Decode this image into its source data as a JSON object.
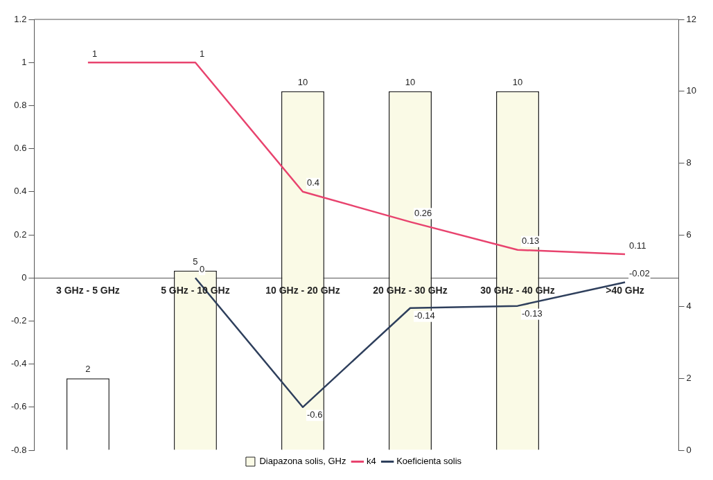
{
  "chart_data": {
    "type": "bar",
    "categories": [
      "3 GHz - 5 GHz",
      "5 GHz - 10 GHz",
      "10 GHz - 20 GHz",
      "20 GHz - 30 GHz",
      "30 GHz - 40 GHz",
      ">40 GHz"
    ],
    "series": [
      {
        "name": "Diapazona solis, GHz",
        "type": "bar",
        "axis": "y2",
        "color": "#fafae6",
        "colors": [
          "#ffffff",
          "#fafae6",
          "#fafae6",
          "#fafae6",
          "#fafae6",
          "#fafae6"
        ],
        "values": [
          2,
          5,
          10,
          10,
          10,
          null
        ]
      },
      {
        "name": "k4",
        "type": "line",
        "color": "#e8436e",
        "values": [
          1,
          1,
          0.4,
          0.26,
          0.13,
          0.11
        ]
      },
      {
        "name": "Koeficienta solis",
        "type": "line",
        "color": "#2e3f5c",
        "values": [
          null,
          0,
          -0.6,
          -0.14,
          -0.13,
          -0.02
        ]
      }
    ],
    "ylim": [
      -0.8,
      1.2
    ],
    "yticks": [
      -0.8,
      -0.6,
      -0.4,
      -0.2,
      0,
      0.2,
      0.4,
      0.6,
      0.8,
      1,
      1.2
    ],
    "y2lim": [
      0,
      12
    ],
    "y2ticks": [
      0,
      2,
      4,
      6,
      8,
      10,
      12
    ],
    "data_labels": true,
    "grid": false,
    "legend": "bottom",
    "marker": "none"
  }
}
